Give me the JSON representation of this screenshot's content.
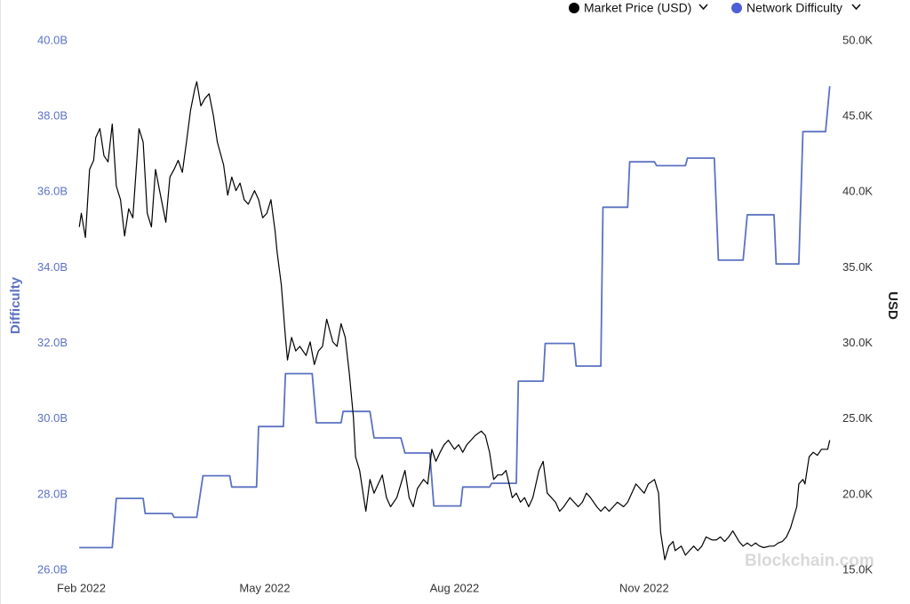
{
  "chart_data": {
    "type": "line",
    "legend": "top-right",
    "watermark": "Blockchain.com",
    "y_label": "Difficulty",
    "y2_label": "USD",
    "xlim": [
      -1.5,
      364
    ],
    "xticks": [
      {
        "value": 0,
        "label": "Feb 2022"
      },
      {
        "value": 89,
        "label": "May 2022"
      },
      {
        "value": 181,
        "label": "Aug 2022"
      },
      {
        "value": 273,
        "label": "Nov 2022"
      }
    ],
    "ylim": [
      26,
      40
    ],
    "yticks": [
      {
        "value": 26,
        "label": "26.0B"
      },
      {
        "value": 28,
        "label": "28.0B"
      },
      {
        "value": 30,
        "label": "30.0B"
      },
      {
        "value": 32,
        "label": "32.0B"
      },
      {
        "value": 34,
        "label": "34.0B"
      },
      {
        "value": 36,
        "label": "36.0B"
      },
      {
        "value": 38,
        "label": "38.0B"
      },
      {
        "value": 40,
        "label": "40.0B"
      }
    ],
    "y2lim": [
      15,
      50
    ],
    "y2ticks": [
      {
        "value": 15,
        "label": "15.0K"
      },
      {
        "value": 20,
        "label": "20.0K"
      },
      {
        "value": 25,
        "label": "25.0K"
      },
      {
        "value": 30,
        "label": "30.0K"
      },
      {
        "value": 35,
        "label": "35.0K"
      },
      {
        "value": 40,
        "label": "40.0K"
      },
      {
        "value": 45,
        "label": "45.0K"
      },
      {
        "value": 50,
        "label": "50.0K"
      }
    ],
    "y_color": "#5b72c2",
    "series": [
      {
        "name": "Market Price (USD)",
        "color": "#000000",
        "axis": "y2",
        "x": [
          -1,
          0,
          2,
          4,
          6,
          7,
          9,
          11,
          13,
          15,
          17,
          19,
          21,
          23,
          25,
          28,
          30,
          32,
          34,
          36,
          38,
          41,
          43,
          45,
          47,
          49,
          51,
          53,
          55,
          56,
          58,
          60,
          62,
          64,
          66,
          69,
          71,
          73,
          75,
          77,
          79,
          81,
          84,
          86,
          88,
          90,
          92,
          94,
          95,
          97,
          99,
          100,
          102,
          104,
          106,
          109,
          111,
          113,
          115,
          117,
          119,
          122,
          124,
          126,
          128,
          130,
          132,
          133,
          135,
          137,
          138,
          140,
          142,
          144,
          146,
          148,
          150,
          153,
          155,
          157,
          159,
          161,
          163,
          166,
          168,
          170,
          172,
          174,
          176,
          178,
          181,
          183,
          185,
          187,
          189,
          191,
          194,
          196,
          198,
          200,
          202,
          204,
          206,
          209,
          211,
          213,
          215,
          217,
          219,
          222,
          224,
          226,
          228,
          230,
          232,
          234,
          237,
          239,
          241,
          243,
          245,
          247,
          250,
          252,
          254,
          256,
          258,
          260,
          263,
          265,
          267,
          269,
          271,
          273,
          275,
          278,
          280,
          281,
          283,
          285,
          287,
          288,
          291,
          293,
          295,
          297,
          299,
          301,
          303,
          306,
          308,
          310,
          312,
          314,
          316,
          319,
          321,
          323,
          325,
          327,
          329,
          331,
          334,
          336,
          338,
          340,
          342,
          344,
          347,
          348,
          350,
          351,
          353,
          355,
          357,
          359,
          362,
          363
        ],
        "values": [
          37.7,
          38.6,
          37.0,
          41.5,
          42.1,
          43.6,
          44.2,
          42.4,
          42.0,
          44.5,
          40.4,
          39.5,
          37.1,
          38.9,
          38.3,
          44.2,
          43.3,
          38.6,
          37.7,
          41.5,
          40.1,
          38.0,
          41.0,
          41.5,
          42.1,
          41.3,
          43.3,
          45.4,
          46.8,
          47.3,
          45.7,
          46.2,
          46.5,
          45.1,
          43.3,
          41.8,
          39.8,
          41.0,
          40.1,
          40.6,
          39.5,
          39.2,
          40.1,
          39.5,
          38.3,
          38.6,
          39.5,
          37.4,
          36.0,
          33.9,
          30.4,
          28.9,
          30.4,
          29.5,
          29.8,
          29.2,
          30.1,
          28.6,
          29.5,
          29.8,
          31.6,
          30.1,
          29.8,
          31.3,
          30.4,
          28.0,
          25.1,
          22.5,
          21.6,
          19.8,
          18.9,
          21.0,
          20.1,
          20.7,
          21.3,
          19.8,
          19.2,
          19.8,
          20.7,
          21.6,
          19.8,
          19.2,
          20.4,
          21.0,
          20.7,
          23.0,
          22.2,
          22.8,
          23.3,
          23.6,
          23.0,
          23.3,
          22.8,
          23.3,
          23.6,
          23.9,
          24.2,
          23.9,
          22.8,
          21.0,
          21.3,
          21.3,
          21.6,
          19.8,
          20.1,
          19.5,
          19.8,
          19.2,
          19.8,
          21.6,
          22.2,
          20.1,
          19.8,
          19.5,
          18.9,
          19.2,
          19.8,
          19.5,
          19.2,
          19.5,
          20.1,
          19.8,
          19.2,
          18.9,
          19.2,
          18.9,
          19.2,
          19.5,
          19.2,
          19.5,
          20.1,
          20.7,
          20.4,
          20.1,
          20.7,
          21.0,
          20.1,
          17.5,
          15.7,
          16.6,
          16.9,
          16.3,
          16.6,
          16.0,
          16.3,
          16.6,
          16.3,
          16.6,
          17.2,
          17.0,
          17.0,
          17.2,
          16.9,
          17.2,
          17.6,
          16.9,
          16.6,
          16.8,
          16.6,
          16.8,
          16.6,
          16.5,
          16.6,
          16.6,
          16.8,
          16.9,
          17.2,
          17.8,
          19.2,
          20.7,
          21.0,
          20.7,
          22.5,
          22.8,
          22.6,
          23.0,
          23.0,
          23.6
        ]
      },
      {
        "name": "Network Difficulty",
        "color": "#5b72c2",
        "legend_color": "#4b5fd6",
        "axis": "y",
        "x": [
          -1,
          15,
          17,
          30,
          31,
          44,
          45,
          56,
          59,
          72,
          73,
          85,
          86,
          98,
          99,
          112,
          114,
          126,
          127,
          140,
          142,
          155,
          157,
          169,
          171,
          184,
          185,
          198,
          199,
          211,
          212,
          224,
          225,
          239,
          240,
          252,
          253,
          265,
          266,
          278,
          279,
          293,
          294,
          307,
          309,
          321,
          323,
          336,
          337,
          348,
          350,
          361,
          363
        ],
        "values": [
          26.6,
          26.6,
          27.9,
          27.9,
          27.5,
          27.5,
          27.4,
          27.4,
          28.5,
          28.5,
          28.2,
          28.2,
          29.8,
          29.8,
          31.2,
          31.2,
          29.9,
          29.9,
          30.2,
          30.2,
          29.5,
          29.5,
          29.1,
          29.1,
          27.7,
          27.7,
          28.2,
          28.2,
          28.3,
          28.3,
          31.0,
          31.0,
          32.0,
          32.0,
          31.4,
          31.4,
          35.6,
          35.6,
          36.8,
          36.8,
          36.7,
          36.7,
          36.9,
          36.9,
          34.2,
          34.2,
          35.4,
          35.4,
          34.1,
          34.1,
          37.6,
          37.6,
          38.8
        ]
      }
    ]
  }
}
